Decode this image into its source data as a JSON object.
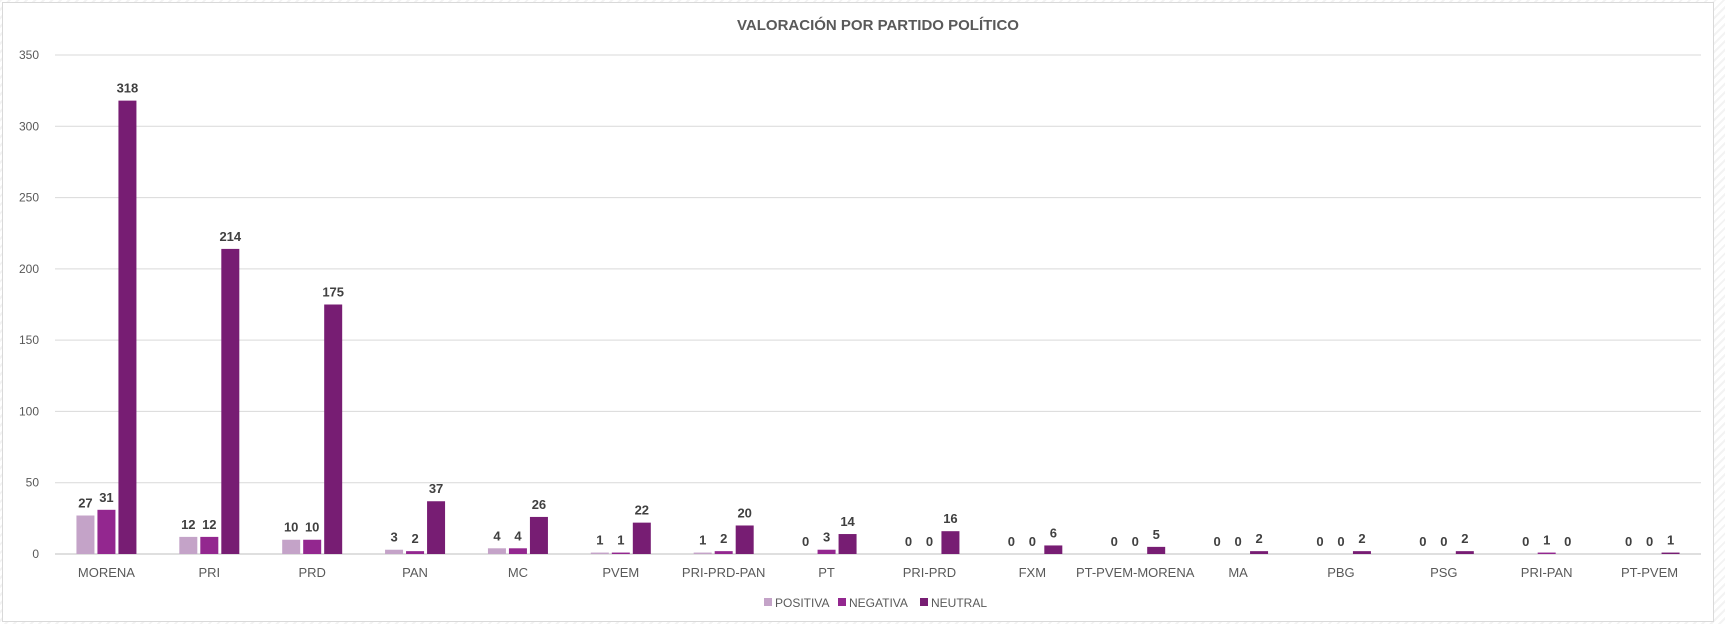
{
  "chart_data": {
    "type": "bar",
    "title": "VALORACIÓN POR PARTIDO POLÍTICO",
    "xlabel": "",
    "ylabel": "",
    "ylim": [
      0,
      350
    ],
    "yticks": [
      0,
      50,
      100,
      150,
      200,
      250,
      300,
      350
    ],
    "grid": true,
    "legend_position": "bottom",
    "categories": [
      "MORENA",
      "PRI",
      "PRD",
      "PAN",
      "MC",
      "PVEM",
      "PRI-PRD-PAN",
      "PT",
      "PRI-PRD",
      "FXM",
      "PT-PVEM-MORENA",
      "MA",
      "PBG",
      "PSG",
      "PRI-PAN",
      "PT-PVEM"
    ],
    "series": [
      {
        "name": "POSITIVA",
        "color": "#c4a3c8",
        "values": [
          27,
          12,
          10,
          3,
          4,
          1,
          1,
          0,
          0,
          0,
          0,
          0,
          0,
          0,
          0,
          0
        ]
      },
      {
        "name": "NEGATIVA",
        "color": "#93278f",
        "values": [
          31,
          12,
          10,
          2,
          4,
          1,
          2,
          3,
          0,
          0,
          0,
          0,
          0,
          0,
          1,
          0
        ]
      },
      {
        "name": "NEUTRAL",
        "color": "#771d73",
        "values": [
          318,
          214,
          175,
          37,
          26,
          22,
          20,
          14,
          16,
          6,
          5,
          2,
          2,
          2,
          0,
          1
        ]
      }
    ]
  }
}
